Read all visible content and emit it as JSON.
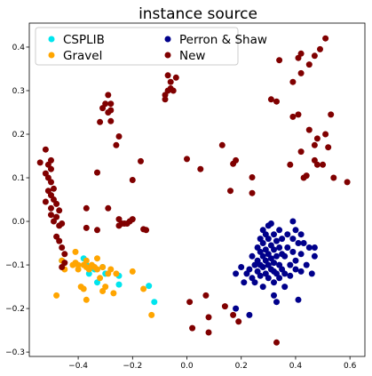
{
  "chart_data": {
    "type": "scatter",
    "title": "instance source",
    "xlabel": "",
    "ylabel": "",
    "xlim": [
      -0.58,
      0.655
    ],
    "ylim": [
      -0.31,
      0.455
    ],
    "x_ticks": [
      -0.4,
      -0.2,
      0.0,
      0.2,
      0.4,
      0.6
    ],
    "x_tick_labels": [
      "−0.4",
      "−0.2",
      "0.0",
      "0.2",
      "0.4",
      "0.6"
    ],
    "y_ticks": [
      -0.3,
      -0.2,
      -0.1,
      0.0,
      0.1,
      0.2,
      0.3,
      0.4
    ],
    "y_tick_labels": [
      "−0.3",
      "−0.2",
      "−0.1",
      "0.0",
      "0.1",
      "0.2",
      "0.3",
      "0.4"
    ],
    "grid": false,
    "legend_placement": "top-left",
    "series": [
      {
        "name": "CSPLIB",
        "color": "#00e5ee",
        "points": [
          [
            -0.46,
            -0.09
          ],
          [
            -0.38,
            -0.085
          ],
          [
            -0.37,
            -0.1
          ],
          [
            -0.36,
            -0.12
          ],
          [
            -0.34,
            -0.11
          ],
          [
            -0.33,
            -0.14
          ],
          [
            -0.31,
            -0.105
          ],
          [
            -0.3,
            -0.12
          ],
          [
            -0.25,
            -0.125
          ],
          [
            -0.25,
            -0.145
          ],
          [
            -0.14,
            -0.148
          ],
          [
            -0.12,
            -0.185
          ]
        ]
      },
      {
        "name": "Perron & Shaw",
        "color": "#00008b",
        "points": [
          [
            0.18,
            -0.12
          ],
          [
            0.18,
            -0.2
          ],
          [
            0.2,
            -0.105
          ],
          [
            0.21,
            -0.14
          ],
          [
            0.22,
            -0.12
          ],
          [
            0.23,
            -0.11
          ],
          [
            0.23,
            -0.215
          ],
          [
            0.24,
            -0.08
          ],
          [
            0.24,
            -0.13
          ],
          [
            0.25,
            -0.1
          ],
          [
            0.25,
            -0.14
          ],
          [
            0.26,
            -0.06
          ],
          [
            0.26,
            -0.09
          ],
          [
            0.26,
            -0.115
          ],
          [
            0.27,
            -0.04
          ],
          [
            0.27,
            -0.07
          ],
          [
            0.27,
            -0.1
          ],
          [
            0.27,
            -0.125
          ],
          [
            0.28,
            -0.02
          ],
          [
            0.28,
            -0.05
          ],
          [
            0.28,
            -0.08
          ],
          [
            0.28,
            -0.105
          ],
          [
            0.28,
            -0.15
          ],
          [
            0.29,
            -0.03
          ],
          [
            0.29,
            -0.065
          ],
          [
            0.29,
            -0.09
          ],
          [
            0.29,
            -0.12
          ],
          [
            0.3,
            -0.01
          ],
          [
            0.3,
            -0.04
          ],
          [
            0.3,
            -0.075
          ],
          [
            0.3,
            -0.1
          ],
          [
            0.3,
            -0.13
          ],
          [
            0.31,
            -0.005
          ],
          [
            0.31,
            -0.055
          ],
          [
            0.31,
            -0.085
          ],
          [
            0.31,
            -0.11
          ],
          [
            0.32,
            -0.03
          ],
          [
            0.32,
            -0.065
          ],
          [
            0.32,
            -0.095
          ],
          [
            0.32,
            -0.115
          ],
          [
            0.32,
            -0.14
          ],
          [
            0.32,
            -0.17
          ],
          [
            0.33,
            -0.045
          ],
          [
            0.33,
            -0.08
          ],
          [
            0.33,
            -0.12
          ],
          [
            0.33,
            -0.185
          ],
          [
            0.34,
            -0.02
          ],
          [
            0.34,
            -0.06
          ],
          [
            0.34,
            -0.1
          ],
          [
            0.34,
            -0.13
          ],
          [
            0.35,
            -0.04
          ],
          [
            0.35,
            -0.075
          ],
          [
            0.35,
            -0.11
          ],
          [
            0.36,
            -0.08
          ],
          [
            0.36,
            -0.12
          ],
          [
            0.36,
            -0.15
          ],
          [
            0.37,
            -0.03
          ],
          [
            0.37,
            -0.06
          ],
          [
            0.38,
            -0.1
          ],
          [
            0.38,
            -0.125
          ],
          [
            0.39,
            0.0
          ],
          [
            0.39,
            -0.04
          ],
          [
            0.39,
            -0.07
          ],
          [
            0.4,
            -0.02
          ],
          [
            0.4,
            -0.09
          ],
          [
            0.4,
            -0.11
          ],
          [
            0.41,
            -0.05
          ],
          [
            0.41,
            -0.18
          ],
          [
            0.42,
            -0.03
          ],
          [
            0.42,
            -0.075
          ],
          [
            0.42,
            -0.115
          ],
          [
            0.43,
            -0.05
          ],
          [
            0.44,
            -0.1
          ],
          [
            0.45,
            -0.06
          ],
          [
            0.47,
            -0.06
          ],
          [
            0.47,
            -0.08
          ],
          [
            0.46,
            -0.12
          ]
        ]
      },
      {
        "name": "Gravel",
        "color": "#ffa500",
        "points": [
          [
            -0.48,
            -0.17
          ],
          [
            -0.46,
            -0.09
          ],
          [
            -0.45,
            -0.11
          ],
          [
            -0.42,
            -0.1
          ],
          [
            -0.41,
            -0.07
          ],
          [
            -0.41,
            -0.095
          ],
          [
            -0.4,
            -0.1
          ],
          [
            -0.4,
            -0.11
          ],
          [
            -0.39,
            -0.15
          ],
          [
            -0.38,
            -0.155
          ],
          [
            -0.38,
            -0.1
          ],
          [
            -0.37,
            -0.09
          ],
          [
            -0.37,
            -0.105
          ],
          [
            -0.37,
            -0.18
          ],
          [
            -0.36,
            -0.11
          ],
          [
            -0.35,
            -0.1
          ],
          [
            -0.34,
            -0.105
          ],
          [
            -0.33,
            -0.085
          ],
          [
            -0.33,
            -0.11
          ],
          [
            -0.32,
            -0.13
          ],
          [
            -0.31,
            -0.105
          ],
          [
            -0.31,
            -0.16
          ],
          [
            -0.3,
            -0.15
          ],
          [
            -0.29,
            -0.12
          ],
          [
            -0.28,
            -0.11
          ],
          [
            -0.27,
            -0.165
          ],
          [
            -0.26,
            -0.12
          ],
          [
            -0.2,
            -0.115
          ],
          [
            -0.16,
            -0.155
          ],
          [
            -0.13,
            -0.215
          ]
        ]
      },
      {
        "name": "New",
        "color": "#800000",
        "points": [
          [
            -0.54,
            0.135
          ],
          [
            -0.52,
            0.165
          ],
          [
            -0.52,
            0.11
          ],
          [
            -0.51,
            0.1
          ],
          [
            -0.51,
            0.13
          ],
          [
            -0.5,
            0.12
          ],
          [
            -0.5,
            0.14
          ],
          [
            -0.5,
            0.09
          ],
          [
            -0.51,
            0.07
          ],
          [
            -0.52,
            0.045
          ],
          [
            -0.5,
            0.06
          ],
          [
            -0.5,
            0.03
          ],
          [
            -0.49,
            0.075
          ],
          [
            -0.49,
            0.05
          ],
          [
            -0.48,
            0.04
          ],
          [
            -0.47,
            0.025
          ],
          [
            -0.48,
            0.01
          ],
          [
            -0.5,
            0.015
          ],
          [
            -0.49,
            0.0
          ],
          [
            -0.47,
            -0.01
          ],
          [
            -0.46,
            -0.005
          ],
          [
            -0.48,
            -0.035
          ],
          [
            -0.47,
            -0.045
          ],
          [
            -0.46,
            -0.06
          ],
          [
            -0.45,
            -0.075
          ],
          [
            -0.45,
            -0.095
          ],
          [
            -0.46,
            -0.105
          ],
          [
            -0.37,
            0.03
          ],
          [
            -0.37,
            -0.015
          ],
          [
            -0.33,
            0.112
          ],
          [
            -0.33,
            -0.02
          ],
          [
            -0.31,
            0.26
          ],
          [
            -0.3,
            0.27
          ],
          [
            -0.29,
            0.29
          ],
          [
            -0.29,
            0.25
          ],
          [
            -0.28,
            0.255
          ],
          [
            -0.28,
            0.27
          ],
          [
            -0.28,
            0.23
          ],
          [
            -0.32,
            0.228
          ],
          [
            -0.29,
            0.03
          ],
          [
            -0.26,
            0.175
          ],
          [
            -0.25,
            0.195
          ],
          [
            -0.25,
            0.005
          ],
          [
            -0.25,
            -0.01
          ],
          [
            -0.24,
            -0.005
          ],
          [
            -0.23,
            -0.005
          ],
          [
            -0.22,
            -0.005
          ],
          [
            -0.21,
            0.0
          ],
          [
            -0.2,
            0.095
          ],
          [
            -0.2,
            0.005
          ],
          [
            -0.17,
            0.138
          ],
          [
            -0.16,
            -0.018
          ],
          [
            -0.15,
            -0.02
          ],
          [
            -0.08,
            0.29
          ],
          [
            -0.08,
            0.28
          ],
          [
            -0.07,
            0.3
          ],
          [
            -0.06,
            0.305
          ],
          [
            -0.06,
            0.32
          ],
          [
            -0.07,
            0.335
          ],
          [
            -0.05,
            0.3
          ],
          [
            -0.04,
            0.33
          ],
          [
            0.0,
            0.143
          ],
          [
            0.01,
            -0.185
          ],
          [
            0.02,
            -0.245
          ],
          [
            0.05,
            0.12
          ],
          [
            0.07,
            -0.17
          ],
          [
            0.08,
            -0.22
          ],
          [
            0.08,
            -0.255
          ],
          [
            0.13,
            0.175
          ],
          [
            0.14,
            -0.195
          ],
          [
            0.16,
            0.07
          ],
          [
            0.17,
            0.132
          ],
          [
            0.17,
            -0.215
          ],
          [
            0.18,
            0.14
          ],
          [
            0.19,
            -0.23
          ],
          [
            0.24,
            0.101
          ],
          [
            0.24,
            0.065
          ],
          [
            0.31,
            0.28
          ],
          [
            0.33,
            0.275
          ],
          [
            0.34,
            0.37
          ],
          [
            0.39,
            0.32
          ],
          [
            0.39,
            0.24
          ],
          [
            0.41,
            0.245
          ],
          [
            0.41,
            0.375
          ],
          [
            0.42,
            0.34
          ],
          [
            0.42,
            0.385
          ],
          [
            0.43,
            0.1
          ],
          [
            0.44,
            0.105
          ],
          [
            0.45,
            0.21
          ],
          [
            0.45,
            0.36
          ],
          [
            0.47,
            0.38
          ],
          [
            0.47,
            0.175
          ],
          [
            0.47,
            0.14
          ],
          [
            0.48,
            0.13
          ],
          [
            0.48,
            0.19
          ],
          [
            0.49,
            0.395
          ],
          [
            0.5,
            0.13
          ],
          [
            0.51,
            0.2
          ],
          [
            0.51,
            0.42
          ],
          [
            0.52,
            0.17
          ],
          [
            0.53,
            0.245
          ],
          [
            0.54,
            0.1
          ],
          [
            0.59,
            0.09
          ],
          [
            0.33,
            -0.278
          ],
          [
            0.42,
            0.16
          ],
          [
            0.38,
            0.13
          ]
        ]
      }
    ]
  }
}
